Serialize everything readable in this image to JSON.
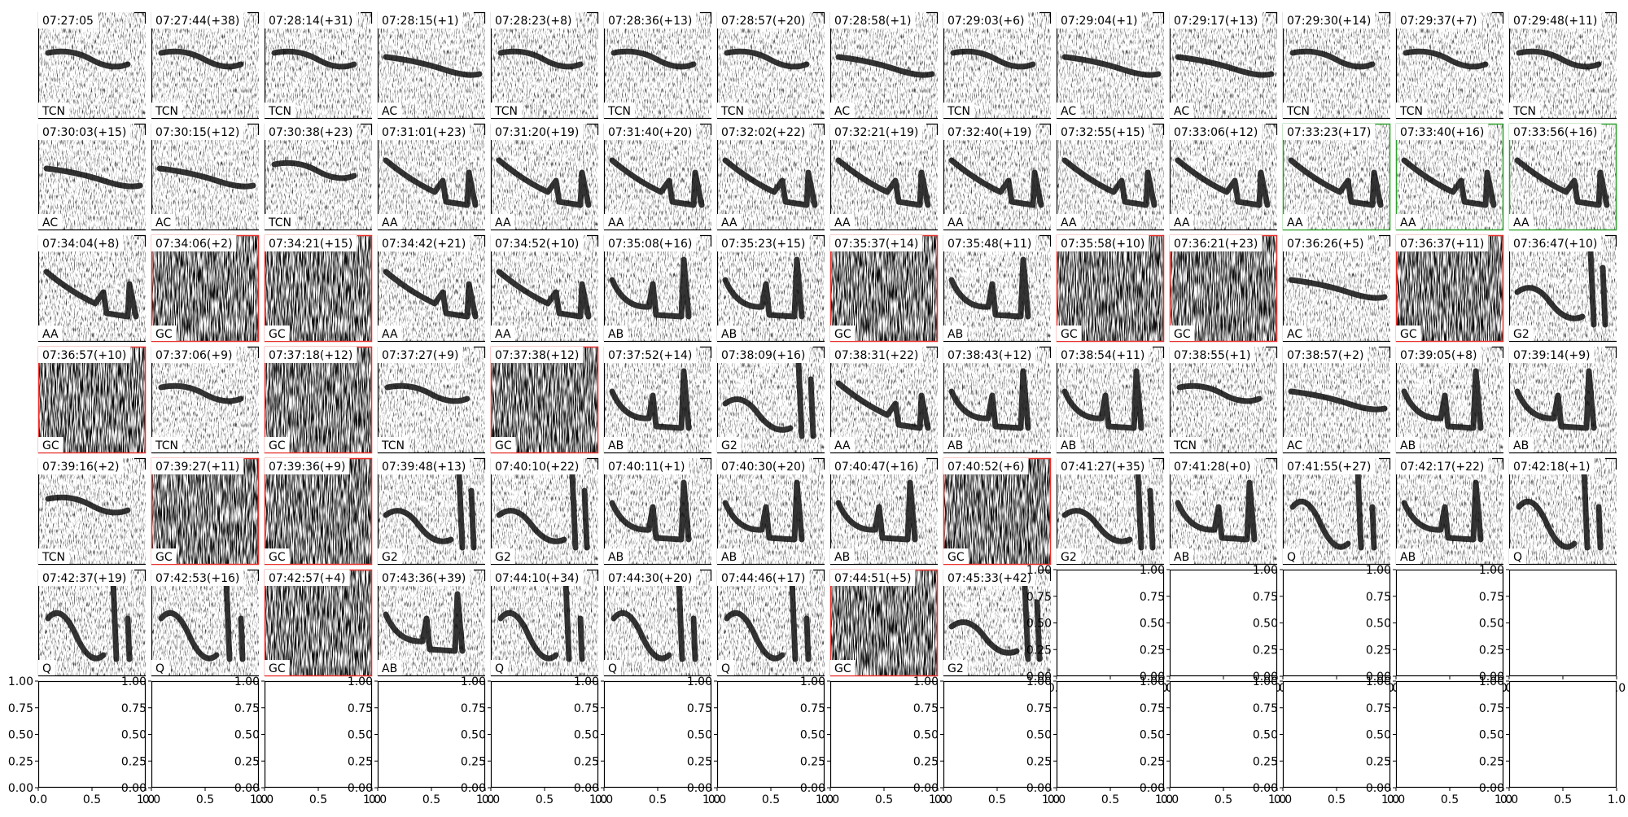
{
  "panels": [
    {
      "time": "07:27:05",
      "label": "TCN"
    },
    {
      "time": "07:27:44(+38)",
      "label": "TCN"
    },
    {
      "time": "07:28:14(+31)",
      "label": "TCN"
    },
    {
      "time": "07:28:15(+1)",
      "label": "AC"
    },
    {
      "time": "07:28:23(+8)",
      "label": "TCN"
    },
    {
      "time": "07:28:36(+13)",
      "label": "TCN"
    },
    {
      "time": "07:28:57(+20)",
      "label": "TCN"
    },
    {
      "time": "07:28:58(+1)",
      "label": "AC"
    },
    {
      "time": "07:29:03(+6)",
      "label": "TCN"
    },
    {
      "time": "07:29:04(+1)",
      "label": "AC"
    },
    {
      "time": "07:29:17(+13)",
      "label": "AC"
    },
    {
      "time": "07:29:30(+14)",
      "label": "TCN"
    },
    {
      "time": "07:29:37(+7)",
      "label": "TCN"
    },
    {
      "time": "07:29:48(+11)",
      "label": "TCN"
    },
    {
      "time": "07:30:03(+15)",
      "label": "AC"
    },
    {
      "time": "07:30:15(+12)",
      "label": "AC"
    },
    {
      "time": "07:30:38(+23)",
      "label": "TCN"
    },
    {
      "time": "07:31:01(+23)",
      "label": "AA"
    },
    {
      "time": "07:31:20(+19)",
      "label": "AA"
    },
    {
      "time": "07:31:40(+20)",
      "label": "AA"
    },
    {
      "time": "07:32:02(+22)",
      "label": "AA"
    },
    {
      "time": "07:32:21(+19)",
      "label": "AA"
    },
    {
      "time": "07:32:40(+19)",
      "label": "AA"
    },
    {
      "time": "07:32:55(+15)",
      "label": "AA"
    },
    {
      "time": "07:33:06(+12)",
      "label": "AA"
    },
    {
      "time": "07:33:23(+17)",
      "label": "AA",
      "border": "#2ca02c"
    },
    {
      "time": "07:33:40(+16)",
      "label": "AA",
      "border": "#2ca02c"
    },
    {
      "time": "07:33:56(+16)",
      "label": "AA",
      "border": "#2ca02c"
    },
    {
      "time": "07:34:04(+8)",
      "label": "AA"
    },
    {
      "time": "07:34:06(+2)",
      "label": "GC",
      "border": "#e8302a"
    },
    {
      "time": "07:34:21(+15)",
      "label": "GC",
      "border": "#e8302a"
    },
    {
      "time": "07:34:42(+21)",
      "label": "AA"
    },
    {
      "time": "07:34:52(+10)",
      "label": "AA"
    },
    {
      "time": "07:35:08(+16)",
      "label": "AB"
    },
    {
      "time": "07:35:23(+15)",
      "label": "AB"
    },
    {
      "time": "07:35:37(+14)",
      "label": "GC",
      "border": "#e8302a"
    },
    {
      "time": "07:35:48(+11)",
      "label": "AB"
    },
    {
      "time": "07:35:58(+10)",
      "label": "GC",
      "border": "#e8302a"
    },
    {
      "time": "07:36:21(+23)",
      "label": "GC",
      "border": "#e8302a"
    },
    {
      "time": "07:36:26(+5)",
      "label": "AC"
    },
    {
      "time": "07:36:37(+11)",
      "label": "GC",
      "border": "#e8302a"
    },
    {
      "time": "07:36:47(+10)",
      "label": "G2"
    },
    {
      "time": "07:36:57(+10)",
      "label": "GC",
      "border": "#e8302a"
    },
    {
      "time": "07:37:06(+9)",
      "label": "TCN"
    },
    {
      "time": "07:37:18(+12)",
      "label": "GC",
      "border": "#e8302a"
    },
    {
      "time": "07:37:27(+9)",
      "label": "TCN"
    },
    {
      "time": "07:37:38(+12)",
      "label": "GC",
      "border": "#e8302a"
    },
    {
      "time": "07:37:52(+14)",
      "label": "AB"
    },
    {
      "time": "07:38:09(+16)",
      "label": "G2"
    },
    {
      "time": "07:38:31(+22)",
      "label": "AA"
    },
    {
      "time": "07:38:43(+12)",
      "label": "AB"
    },
    {
      "time": "07:38:54(+11)",
      "label": "AB"
    },
    {
      "time": "07:38:55(+1)",
      "label": "TCN"
    },
    {
      "time": "07:38:57(+2)",
      "label": "AC"
    },
    {
      "time": "07:39:05(+8)",
      "label": "AB"
    },
    {
      "time": "07:39:14(+9)",
      "label": "AB"
    },
    {
      "time": "07:39:16(+2)",
      "label": "TCN"
    },
    {
      "time": "07:39:27(+11)",
      "label": "GC",
      "border": "#e8302a"
    },
    {
      "time": "07:39:36(+9)",
      "label": "GC",
      "border": "#e8302a"
    },
    {
      "time": "07:39:48(+13)",
      "label": "G2"
    },
    {
      "time": "07:40:10(+22)",
      "label": "G2"
    },
    {
      "time": "07:40:11(+1)",
      "label": "AB"
    },
    {
      "time": "07:40:30(+20)",
      "label": "AB"
    },
    {
      "time": "07:40:47(+16)",
      "label": "AB"
    },
    {
      "time": "07:40:52(+6)",
      "label": "GC",
      "border": "#e8302a"
    },
    {
      "time": "07:41:27(+35)",
      "label": "G2"
    },
    {
      "time": "07:41:28(+0)",
      "label": "AB"
    },
    {
      "time": "07:41:55(+27)",
      "label": "Q"
    },
    {
      "time": "07:42:17(+22)",
      "label": "AB"
    },
    {
      "time": "07:42:18(+1)",
      "label": "Q"
    },
    {
      "time": "07:42:37(+19)",
      "label": "Q"
    },
    {
      "time": "07:42:53(+16)",
      "label": "Q"
    },
    {
      "time": "07:42:57(+4)",
      "label": "GC",
      "border": "#e8302a"
    },
    {
      "time": "07:43:36(+39)",
      "label": "AB"
    },
    {
      "time": "07:44:10(+34)",
      "label": "Q"
    },
    {
      "time": "07:44:30(+20)",
      "label": "Q"
    },
    {
      "time": "07:44:46(+17)",
      "label": "Q"
    },
    {
      "time": "07:44:51(+5)",
      "label": "GC",
      "border": "#e8302a"
    },
    {
      "time": "07:45:33(+42)",
      "label": "G2"
    }
  ],
  "empty_axes": {
    "xticks": [
      "0.0",
      "0.5",
      "1.0"
    ],
    "yticks": [
      "0.00",
      "0.25",
      "0.50",
      "0.75",
      "1.00"
    ]
  }
}
